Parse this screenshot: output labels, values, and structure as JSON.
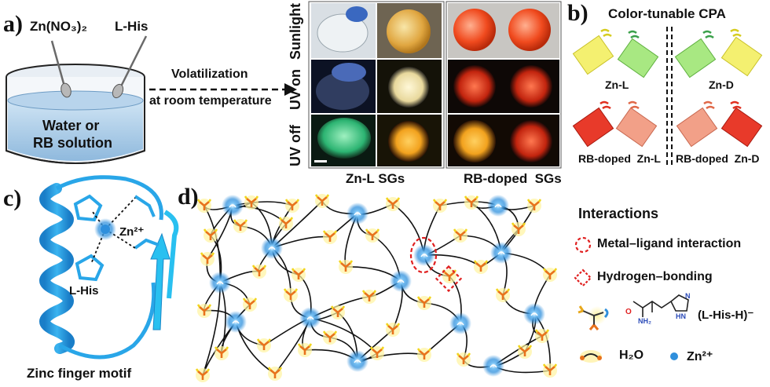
{
  "panel_a": {
    "letter": "a)",
    "reagent_1": "Zn(NO₃)₂",
    "reagent_2": "L-His",
    "beaker_line_1": "Water or",
    "beaker_line_2": "RB solution",
    "arrow_line_1": "Volatilization",
    "arrow_line_2": "at room temperature",
    "row_labels": [
      "Sunlight",
      "UV on",
      "UV off"
    ],
    "caption_left": "Zn-L SGs",
    "caption_right": "RB-doped  SGs"
  },
  "panel_b": {
    "letter": "b)",
    "title": "Color-tunable CPA",
    "labels": [
      "Zn-L",
      "Zn-D",
      "RB-doped  Zn-L",
      "RB-doped  Zn-D"
    ]
  },
  "panel_c": {
    "letter": "c)",
    "ion": "Zn²⁺",
    "ligand": "L-His",
    "caption": "Zinc finger motif"
  },
  "panel_d": {
    "letter": "d)",
    "legend_title": "Interactions",
    "legend_items": [
      "Metal–ligand interaction",
      "Hydrogen–bonding"
    ],
    "ligand_label": "(L-His-H)⁻",
    "chem_o": "O",
    "chem_nh2": "NH₂",
    "chem_n": "N",
    "chem_hn": "HN",
    "water_label": "H₂O",
    "zinc_label": "Zn²⁺"
  },
  "colors": {
    "zinc_blue": "#2f8fdc",
    "protein_blue": "#29a6e8",
    "red_dash": "#e02020",
    "ligand_yellow": "#f2d51c",
    "ligand_orange": "#e8721c"
  }
}
